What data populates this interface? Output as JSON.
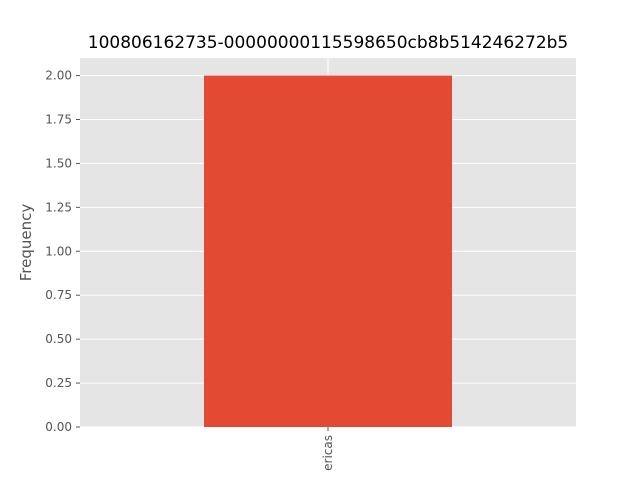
{
  "chart_data": {
    "type": "bar",
    "title": "100806162735-00000000115598650cb8b514246272b5",
    "xlabel": "",
    "ylabel": "Frequency",
    "categories": [
      "ericas"
    ],
    "values": [
      2.0
    ],
    "ylim": [
      0,
      2.1
    ],
    "yticks": [
      "0.00",
      "0.25",
      "0.50",
      "0.75",
      "1.00",
      "1.25",
      "1.50",
      "1.75",
      "2.00"
    ],
    "grid": true,
    "colors": {
      "bar": "#E24A33",
      "plot_background": "#E5E5E5",
      "grid": "#FFFFFF"
    }
  }
}
